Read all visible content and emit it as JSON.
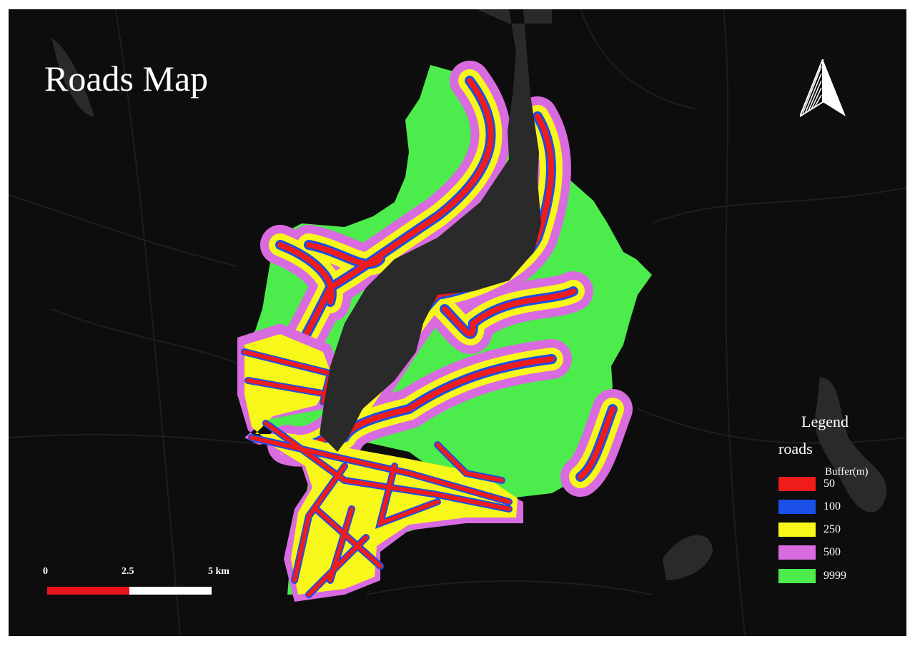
{
  "map": {
    "title": "Roads Map",
    "legend": {
      "title": "Legend",
      "layer": "roads",
      "field": "Buffer(m)",
      "items": [
        {
          "label": "50",
          "color": "#ee1c1c"
        },
        {
          "label": "100",
          "color": "#1a4fe8"
        },
        {
          "label": "250",
          "color": "#f7f71a"
        },
        {
          "label": "500",
          "color": "#d96be0"
        },
        {
          "label": "9999",
          "color": "#4cec4c"
        }
      ]
    },
    "scale_bar": {
      "labels": [
        "0",
        "2.5",
        "5 km"
      ],
      "colors": [
        "#e8141c",
        "#ffffff"
      ]
    },
    "north_arrow": "north-arrow-icon",
    "colors": {
      "background": "#0d0d0d",
      "lake": "#2a2a2a",
      "basemap_roads": "#1e1e1e"
    }
  }
}
